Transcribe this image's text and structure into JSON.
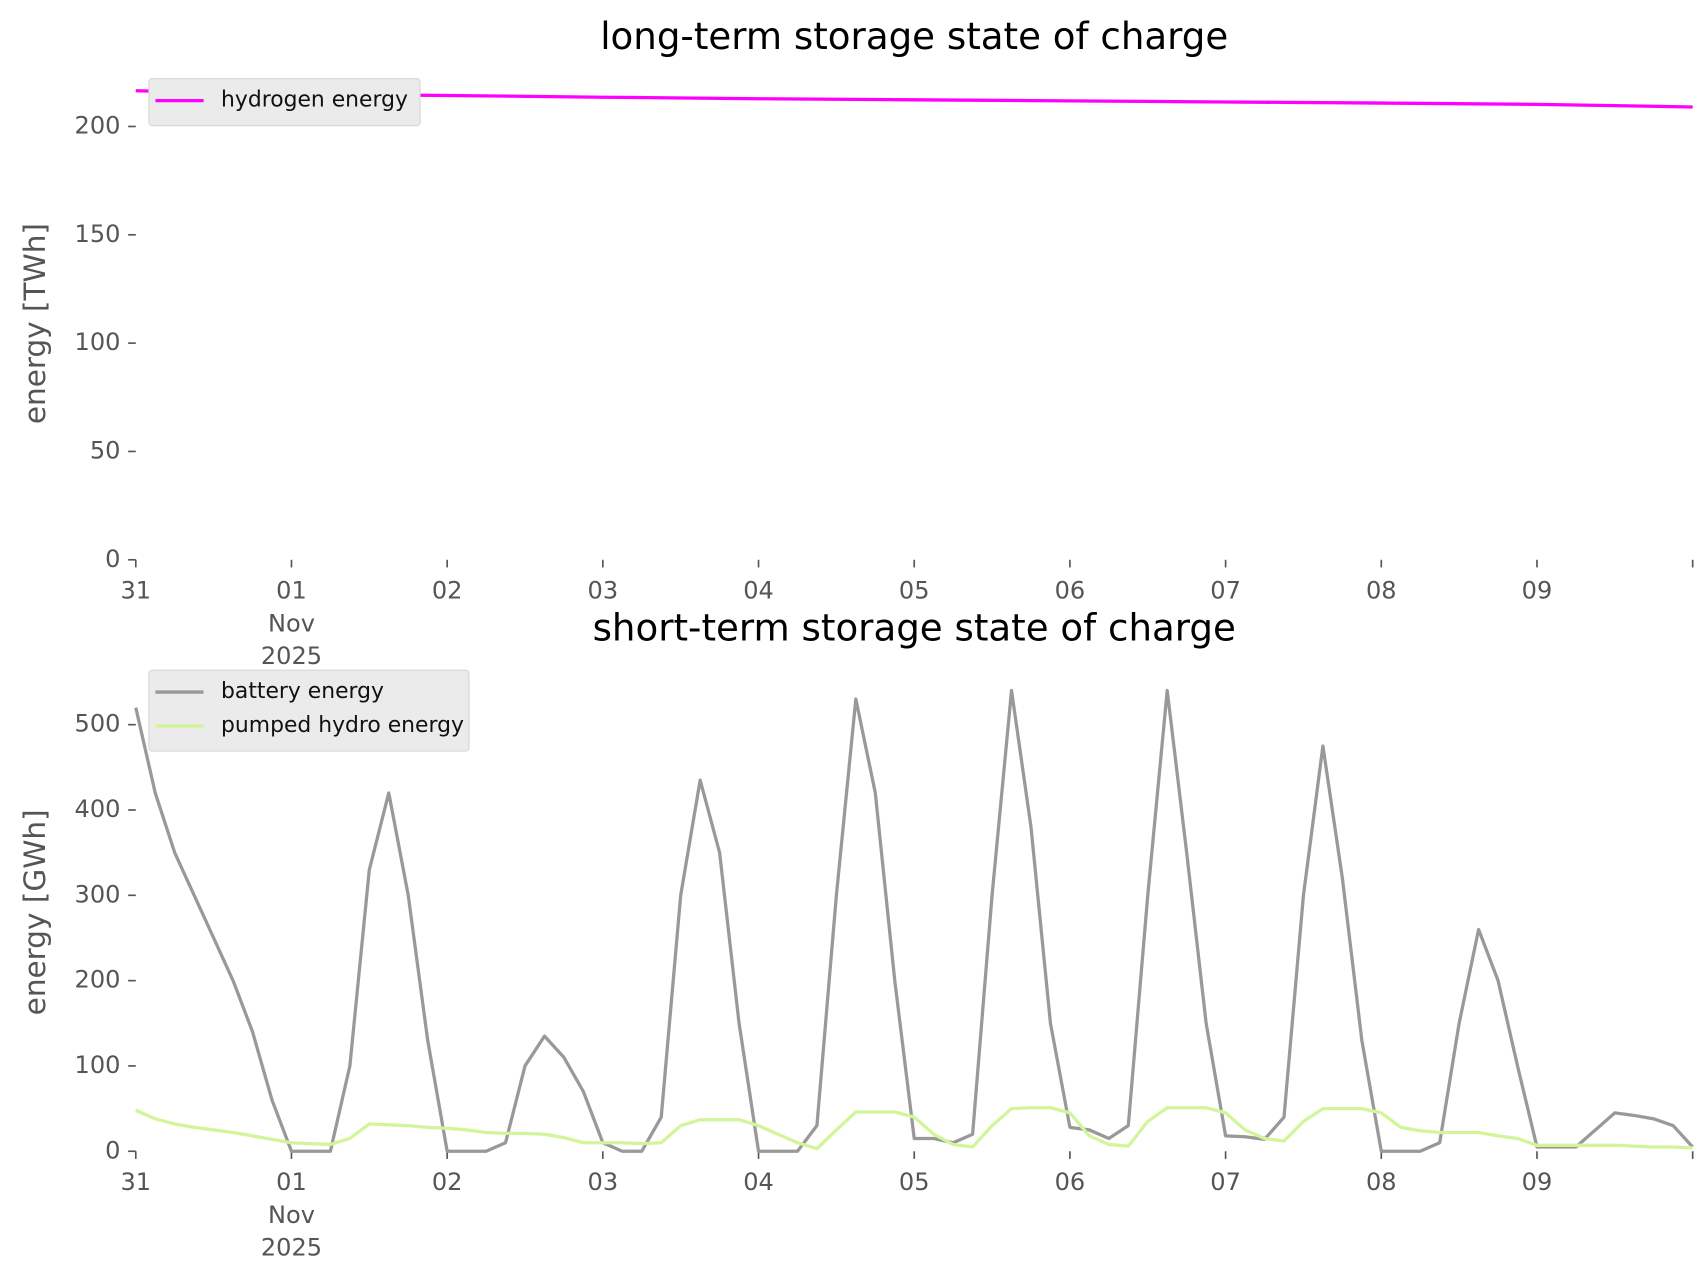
{
  "chart_data": [
    {
      "type": "line",
      "title": "long-term storage state of charge",
      "ylabel": "energy [TWh]",
      "x": [
        "2025-10-31T00:00",
        "2025-11-01T00:00",
        "2025-11-02T00:00",
        "2025-11-03T00:00",
        "2025-11-04T00:00",
        "2025-11-05T00:00",
        "2025-11-06T00:00",
        "2025-11-07T00:00",
        "2025-11-08T00:00",
        "2025-11-09T00:00",
        "2025-11-10T00:00"
      ],
      "series": [
        {
          "name": "hydrogen energy",
          "color": "#ff00ff",
          "values": [
            216.5,
            215,
            214.3,
            213.5,
            212.8,
            212.3,
            211.8,
            211.3,
            210.8,
            210.2,
            209
          ]
        }
      ],
      "xlim": [
        "2025-10-31T00:00",
        "2025-11-10T00:00"
      ],
      "xticks": [
        {
          "value": "2025-10-31T00:00",
          "label": "31"
        },
        {
          "value": "2025-11-01T00:00",
          "label": "01\nNov\n2025"
        },
        {
          "value": "2025-11-02T00:00",
          "label": "02"
        },
        {
          "value": "2025-11-03T00:00",
          "label": "03"
        },
        {
          "value": "2025-11-04T00:00",
          "label": "04"
        },
        {
          "value": "2025-11-05T00:00",
          "label": "05"
        },
        {
          "value": "2025-11-06T00:00",
          "label": "06"
        },
        {
          "value": "2025-11-07T00:00",
          "label": "07"
        },
        {
          "value": "2025-11-08T00:00",
          "label": "08"
        },
        {
          "value": "2025-11-09T00:00",
          "label": "09"
        }
      ],
      "ylim": [
        0,
        218
      ],
      "yticks": [
        0,
        50,
        100,
        150,
        200
      ],
      "grid": false,
      "legend": "upper left"
    },
    {
      "type": "line",
      "title": "short-term storage state of charge",
      "ylabel": "energy [GWh]",
      "x": [
        "2025-10-31T00:00",
        "2025-10-31T03:00",
        "2025-10-31T06:00",
        "2025-10-31T09:00",
        "2025-10-31T12:00",
        "2025-10-31T15:00",
        "2025-10-31T18:00",
        "2025-10-31T21:00",
        "2025-11-01T00:00",
        "2025-11-01T03:00",
        "2025-11-01T06:00",
        "2025-11-01T09:00",
        "2025-11-01T12:00",
        "2025-11-01T15:00",
        "2025-11-01T18:00",
        "2025-11-01T21:00",
        "2025-11-02T00:00",
        "2025-11-02T03:00",
        "2025-11-02T06:00",
        "2025-11-02T09:00",
        "2025-11-02T12:00",
        "2025-11-02T15:00",
        "2025-11-02T18:00",
        "2025-11-02T21:00",
        "2025-11-03T00:00",
        "2025-11-03T03:00",
        "2025-11-03T06:00",
        "2025-11-03T09:00",
        "2025-11-03T12:00",
        "2025-11-03T15:00",
        "2025-11-03T18:00",
        "2025-11-03T21:00",
        "2025-11-04T00:00",
        "2025-11-04T03:00",
        "2025-11-04T06:00",
        "2025-11-04T09:00",
        "2025-11-04T12:00",
        "2025-11-04T15:00",
        "2025-11-04T18:00",
        "2025-11-04T21:00",
        "2025-11-05T00:00",
        "2025-11-05T03:00",
        "2025-11-05T06:00",
        "2025-11-05T09:00",
        "2025-11-05T12:00",
        "2025-11-05T15:00",
        "2025-11-05T18:00",
        "2025-11-05T21:00",
        "2025-11-06T00:00",
        "2025-11-06T03:00",
        "2025-11-06T06:00",
        "2025-11-06T09:00",
        "2025-11-06T12:00",
        "2025-11-06T15:00",
        "2025-11-06T18:00",
        "2025-11-06T21:00",
        "2025-11-07T00:00",
        "2025-11-07T03:00",
        "2025-11-07T06:00",
        "2025-11-07T09:00",
        "2025-11-07T12:00",
        "2025-11-07T15:00",
        "2025-11-07T18:00",
        "2025-11-07T21:00",
        "2025-11-08T00:00",
        "2025-11-08T03:00",
        "2025-11-08T06:00",
        "2025-11-08T09:00",
        "2025-11-08T12:00",
        "2025-11-08T15:00",
        "2025-11-08T18:00",
        "2025-11-08T21:00",
        "2025-11-09T00:00",
        "2025-11-09T03:00",
        "2025-11-09T06:00",
        "2025-11-09T09:00",
        "2025-11-09T12:00",
        "2025-11-09T15:00",
        "2025-11-09T18:00",
        "2025-11-09T21:00",
        "2025-11-10T00:00"
      ],
      "series": [
        {
          "name": "battery energy",
          "color": "#999999",
          "values": [
            520,
            420,
            350,
            300,
            250,
            200,
            140,
            60,
            0,
            0,
            0,
            100,
            330,
            420,
            300,
            130,
            0,
            0,
            0,
            10,
            100,
            135,
            110,
            70,
            10,
            0,
            0,
            40,
            300,
            435,
            350,
            150,
            0,
            0,
            0,
            30,
            300,
            530,
            420,
            200,
            15,
            15,
            10,
            20,
            300,
            540,
            380,
            150,
            28,
            25,
            15,
            30,
            300,
            540,
            350,
            150,
            18,
            17,
            14,
            40,
            300,
            475,
            320,
            130,
            0,
            0,
            0,
            10,
            150,
            260,
            200,
            100,
            5,
            5,
            5,
            25,
            45,
            42,
            38,
            30,
            5
          ]
        },
        {
          "name": "pumped hydro energy",
          "color": "#d2f59a",
          "values": [
            48,
            38,
            32,
            28,
            25,
            22,
            18,
            14,
            10,
            9,
            8,
            15,
            32,
            31,
            30,
            28,
            27,
            25,
            22,
            21,
            21,
            20,
            16,
            10,
            10,
            10,
            9,
            10,
            30,
            37,
            37,
            37,
            30,
            20,
            10,
            3,
            25,
            46,
            46,
            46,
            40,
            20,
            8,
            5,
            30,
            50,
            51,
            51,
            45,
            18,
            8,
            6,
            35,
            51,
            51,
            51,
            45,
            25,
            15,
            12,
            35,
            50,
            50,
            50,
            45,
            28,
            24,
            22,
            22,
            22,
            18,
            15,
            7,
            7,
            7,
            7,
            7,
            6,
            5,
            5,
            4
          ]
        }
      ],
      "xlim": [
        "2025-10-31T00:00",
        "2025-11-10T00:00"
      ],
      "xticks": [
        {
          "value": "2025-10-31T00:00",
          "label": "31"
        },
        {
          "value": "2025-11-01T00:00",
          "label": "01\nNov\n2025"
        },
        {
          "value": "2025-11-02T00:00",
          "label": "02"
        },
        {
          "value": "2025-11-03T00:00",
          "label": "03"
        },
        {
          "value": "2025-11-04T00:00",
          "label": "04"
        },
        {
          "value": "2025-11-05T00:00",
          "label": "05"
        },
        {
          "value": "2025-11-06T00:00",
          "label": "06"
        },
        {
          "value": "2025-11-07T00:00",
          "label": "07"
        },
        {
          "value": "2025-11-08T00:00",
          "label": "08"
        },
        {
          "value": "2025-11-09T00:00",
          "label": "09"
        }
      ],
      "ylim": [
        0,
        560
      ],
      "yticks": [
        0,
        100,
        200,
        300,
        400,
        500
      ],
      "grid": false,
      "legend": "upper left"
    }
  ]
}
